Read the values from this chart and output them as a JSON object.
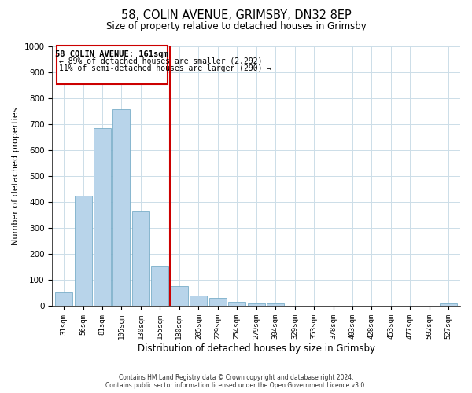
{
  "title": "58, COLIN AVENUE, GRIMSBY, DN32 8EP",
  "subtitle": "Size of property relative to detached houses in Grimsby",
  "xlabel": "Distribution of detached houses by size in Grimsby",
  "ylabel": "Number of detached properties",
  "categories": [
    "31sqm",
    "56sqm",
    "81sqm",
    "105sqm",
    "130sqm",
    "155sqm",
    "180sqm",
    "205sqm",
    "229sqm",
    "254sqm",
    "279sqm",
    "304sqm",
    "329sqm",
    "353sqm",
    "378sqm",
    "403sqm",
    "428sqm",
    "453sqm",
    "477sqm",
    "502sqm",
    "527sqm"
  ],
  "values": [
    52,
    425,
    685,
    757,
    365,
    152,
    78,
    42,
    32,
    18,
    12,
    10,
    0,
    0,
    0,
    0,
    0,
    0,
    0,
    0,
    10
  ],
  "bar_color": "#b8d4ea",
  "bar_edge_color": "#7aaec8",
  "vline_x": 5.5,
  "vline_color": "#cc0000",
  "annotation_title": "58 COLIN AVENUE: 161sqm",
  "annotation_line1": "← 89% of detached houses are smaller (2,292)",
  "annotation_line2": "11% of semi-detached houses are larger (290) →",
  "annotation_box_color": "#ffffff",
  "annotation_box_edge": "#cc0000",
  "ylim": [
    0,
    1000
  ],
  "yticks": [
    0,
    100,
    200,
    300,
    400,
    500,
    600,
    700,
    800,
    900,
    1000
  ],
  "footer_line1": "Contains HM Land Registry data © Crown copyright and database right 2024.",
  "footer_line2": "Contains public sector information licensed under the Open Government Licence v3.0.",
  "background_color": "#ffffff",
  "grid_color": "#ccdde8"
}
